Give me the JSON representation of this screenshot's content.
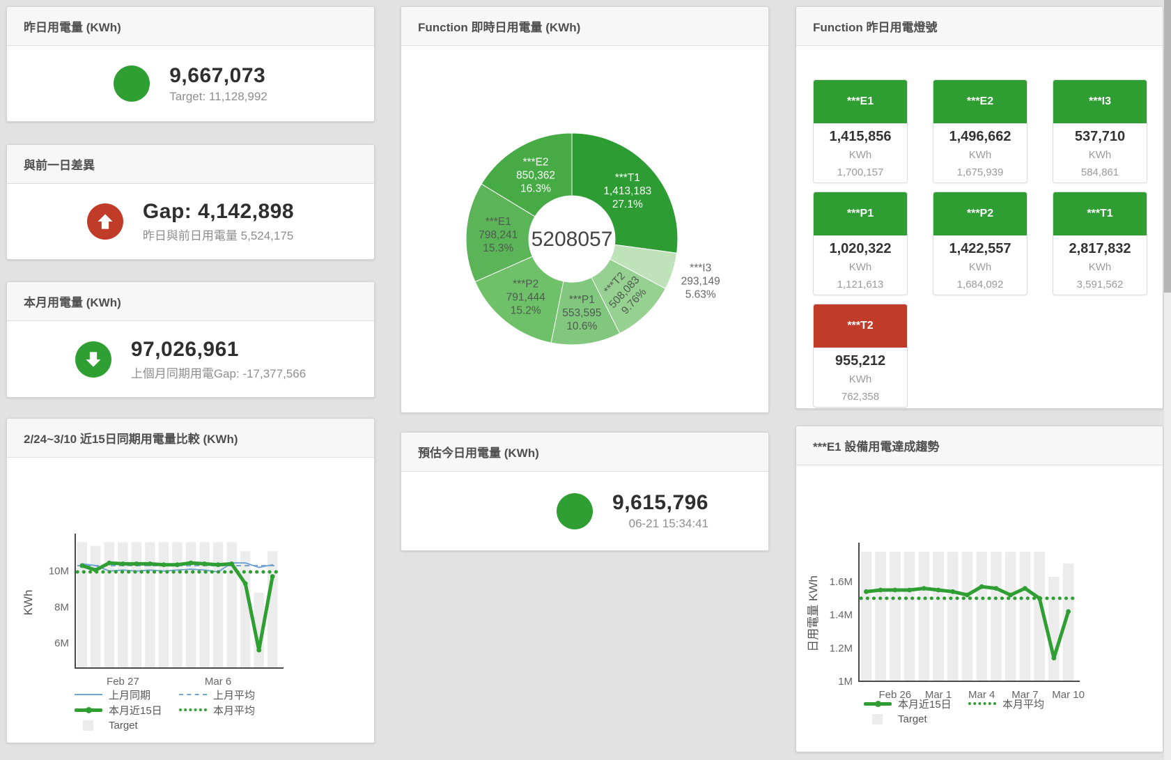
{
  "colors": {
    "green": "#2f9e33",
    "red": "#c03b28",
    "blue": "#72a5d3",
    "bar_grey": "#ececec",
    "tile_green": "#2e9d32",
    "tile_red": "#c03b28"
  },
  "cards": {
    "yesterday": {
      "title": "昨日用電量 (KWh)",
      "value": "9,667,073",
      "subtitle": "Target: 11,128,992"
    },
    "gap": {
      "title": "與前一日差異",
      "value": "Gap: 4,142,898",
      "subtitle": "昨日與前日用電量 5,524,175"
    },
    "month": {
      "title": "本月用電量 (KWh)",
      "value": "97,026,961",
      "subtitle": "上個月同期用電Gap: -17,377,566"
    },
    "estimate": {
      "title": "預估今日用電量 (KWh)",
      "value": "9,615,796",
      "subtitle": "06-21 15:34:41"
    }
  },
  "tiles": {
    "title": "Function 昨日用電燈號",
    "items": [
      {
        "label": "***E1",
        "value": "1,415,856",
        "unit": "KWh",
        "target": "1,700,157",
        "status": "green"
      },
      {
        "label": "***E2",
        "value": "1,496,662",
        "unit": "KWh",
        "target": "1,675,939",
        "status": "green"
      },
      {
        "label": "***I3",
        "value": "537,710",
        "unit": "KWh",
        "target": "584,861",
        "status": "green"
      },
      {
        "label": "***P1",
        "value": "1,020,322",
        "unit": "KWh",
        "target": "1,121,613",
        "status": "green"
      },
      {
        "label": "***P2",
        "value": "1,422,557",
        "unit": "KWh",
        "target": "1,684,092",
        "status": "green"
      },
      {
        "label": "***T1",
        "value": "2,817,832",
        "unit": "KWh",
        "target": "3,591,562",
        "status": "green"
      },
      {
        "label": "***T2",
        "value": "955,212",
        "unit": "KWh",
        "target": "762,358",
        "status": "red"
      }
    ]
  },
  "chart_data": [
    {
      "type": "pie",
      "title": "Function 即時日用電量 (KWh)",
      "center_total": "5208057",
      "unit": "KWh",
      "slices": [
        {
          "label": "***T1",
          "value": 1413183,
          "value_label": "1,413,183",
          "pct": 27.1,
          "pct_label": "27.1%",
          "color": "#2d9d33",
          "text_color": "light"
        },
        {
          "label": "***I3",
          "value": 293149,
          "value_label": "293,149",
          "pct": 5.63,
          "pct_label": "5.63%",
          "color": "#c0e2bb",
          "label_mode": "outside"
        },
        {
          "label": "***T2",
          "value": 508083,
          "value_label": "508,083",
          "pct": 9.76,
          "pct_label": "9.76%",
          "color": "#97d192",
          "label_mode": "rotate"
        },
        {
          "label": "***P1",
          "value": 553595,
          "value_label": "553,595",
          "pct": 10.6,
          "pct_label": "10.6%",
          "color": "#81c77d"
        },
        {
          "label": "***P2",
          "value": 791444,
          "value_label": "791,444",
          "pct": 15.2,
          "pct_label": "15.2%",
          "color": "#6ec069"
        },
        {
          "label": "***E1",
          "value": 798241,
          "value_label": "798,241",
          "pct": 15.3,
          "pct_label": "15.3%",
          "color": "#5bb458"
        },
        {
          "label": "***E2",
          "value": 850362,
          "value_label": "850,362",
          "pct": 16.3,
          "pct_label": "16.3%",
          "color": "#46aa45",
          "text_color": "light"
        }
      ]
    },
    {
      "type": "line+bar",
      "title": "2/24~3/10 近15日同期用電量比較 (KWh)",
      "ylabel": "KWh",
      "y_unit": "M KWh",
      "y_range": [
        4.6,
        11.85
      ],
      "grid": false,
      "legend_position": "bottom-left",
      "categories": [
        "2/24",
        "2/25",
        "2/26",
        "2/27",
        "2/28",
        "3/1",
        "3/2",
        "3/3",
        "3/4",
        "3/5",
        "3/6",
        "3/7",
        "3/8",
        "3/9",
        "3/10"
      ],
      "y_ticks": [
        {
          "value": 6,
          "label": "6M"
        },
        {
          "value": 8,
          "label": "8M"
        },
        {
          "value": 10,
          "label": "10M"
        }
      ],
      "x_ticks": [
        {
          "index": 3,
          "label": "Feb 27"
        },
        {
          "index": 10,
          "label": "Mar 6"
        }
      ],
      "series": [
        {
          "name": "Target",
          "style": "bar",
          "color": "#ececec",
          "values": [
            11.6,
            11.4,
            11.6,
            11.6,
            11.6,
            11.6,
            11.6,
            11.6,
            11.6,
            11.6,
            11.6,
            11.6,
            11.1,
            8.8,
            11.1
          ]
        },
        {
          "name": "上月同期",
          "style": "line",
          "color": "#72a5d3",
          "width": 2,
          "values": [
            10.4,
            10.3,
            10.0,
            10.05,
            10.0,
            10.05,
            10.0,
            10.05,
            10.1,
            10.05,
            9.95,
            10.45,
            10.45,
            10.2,
            10.35
          ]
        },
        {
          "name": "上月平均",
          "style": "dash",
          "color": "#72a5d3",
          "width": 2,
          "value": 10.3
        },
        {
          "name": "本月近15日",
          "style": "line",
          "color": "#2f9e33",
          "width": 5,
          "markers": true,
          "values": [
            10.3,
            10.05,
            10.45,
            10.4,
            10.4,
            10.4,
            10.35,
            10.35,
            10.45,
            10.4,
            10.35,
            10.4,
            9.3,
            5.6,
            9.7
          ]
        },
        {
          "name": "本月平均",
          "style": "dots",
          "color": "#2f9e33",
          "width": 5,
          "value": 9.95
        }
      ],
      "legend": [
        {
          "label": "上月同期",
          "swatch": "blue-line"
        },
        {
          "label": "上月平均",
          "swatch": "blue-dash"
        },
        {
          "label": "本月近15日",
          "swatch": "green-thick"
        },
        {
          "label": "本月平均",
          "swatch": "green-dots"
        },
        {
          "label": "Target",
          "swatch": "grey-box"
        }
      ]
    },
    {
      "type": "line+bar",
      "title": "***E1 設備用電達成趨勢",
      "ylabel": "日用電量 KWh",
      "y_unit": "M KWh",
      "y_range": [
        1.0,
        1.81
      ],
      "grid": false,
      "legend_position": "bottom-left",
      "categories": [
        "2/24",
        "2/25",
        "2/26",
        "2/27",
        "2/28",
        "3/1",
        "3/2",
        "3/3",
        "3/4",
        "3/5",
        "3/6",
        "3/7",
        "3/8",
        "3/9",
        "3/10"
      ],
      "y_ticks": [
        {
          "value": 1.0,
          "label": "1M"
        },
        {
          "value": 1.2,
          "label": "1.2M"
        },
        {
          "value": 1.4,
          "label": "1.4M"
        },
        {
          "value": 1.6,
          "label": "1.6M"
        }
      ],
      "x_ticks": [
        {
          "index": 2,
          "label": "Feb 26"
        },
        {
          "index": 5,
          "label": "Mar 1"
        },
        {
          "index": 8,
          "label": "Mar 4"
        },
        {
          "index": 11,
          "label": "Mar 7"
        },
        {
          "index": 14,
          "label": "Mar 10"
        }
      ],
      "series": [
        {
          "name": "Target",
          "style": "bar",
          "color": "#ececec",
          "values": [
            1.78,
            1.78,
            1.78,
            1.78,
            1.78,
            1.78,
            1.78,
            1.78,
            1.78,
            1.78,
            1.78,
            1.78,
            1.78,
            1.63,
            1.71
          ]
        },
        {
          "name": "本月近15日",
          "style": "line",
          "color": "#2f9e33",
          "width": 5,
          "markers": true,
          "values": [
            1.54,
            1.55,
            1.55,
            1.55,
            1.56,
            1.55,
            1.54,
            1.52,
            1.57,
            1.56,
            1.52,
            1.56,
            1.5,
            1.14,
            1.42
          ]
        },
        {
          "name": "本月平均",
          "style": "dots",
          "color": "#2f9e33",
          "width": 5,
          "value": 1.5
        }
      ],
      "legend": [
        {
          "label": "本月近15日",
          "swatch": "green-thick"
        },
        {
          "label": "本月平均",
          "swatch": "green-dots"
        },
        {
          "label": "Target",
          "swatch": "grey-box"
        }
      ]
    }
  ]
}
